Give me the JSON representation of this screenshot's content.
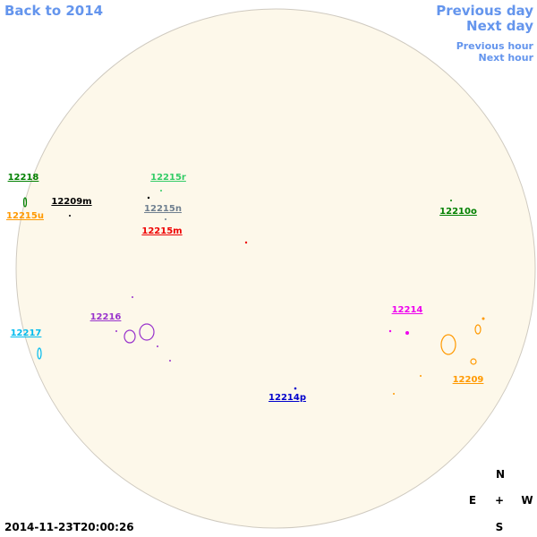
{
  "nav": {
    "back": "Back to 2014",
    "previous_day": "Previous day",
    "next_day": "Next day",
    "previous_hour": "Previous hour",
    "next_hour": "Next hour"
  },
  "timestamp": "2014-11-23T20:00:26",
  "compass": {
    "north": "N",
    "east": "E",
    "center": "+",
    "west": "W",
    "south": "S"
  },
  "regions": [
    {
      "label": "12218",
      "color": "#008000"
    },
    {
      "label": "12215u",
      "color": "#ff9900"
    },
    {
      "label": "12209m",
      "color": "#000000"
    },
    {
      "label": "12215r",
      "color": "#33cc66"
    },
    {
      "label": "12215n",
      "color": "#708090"
    },
    {
      "label": "12215m",
      "color": "#ee0000"
    },
    {
      "label": "12210o",
      "color": "#008000"
    },
    {
      "label": "12216",
      "color": "#9933cc"
    },
    {
      "label": "12217",
      "color": "#00bbee"
    },
    {
      "label": "12214",
      "color": "#ee00ee"
    },
    {
      "label": "12209",
      "color": "#ff9900"
    },
    {
      "label": "12214p",
      "color": "#0000cc"
    }
  ]
}
